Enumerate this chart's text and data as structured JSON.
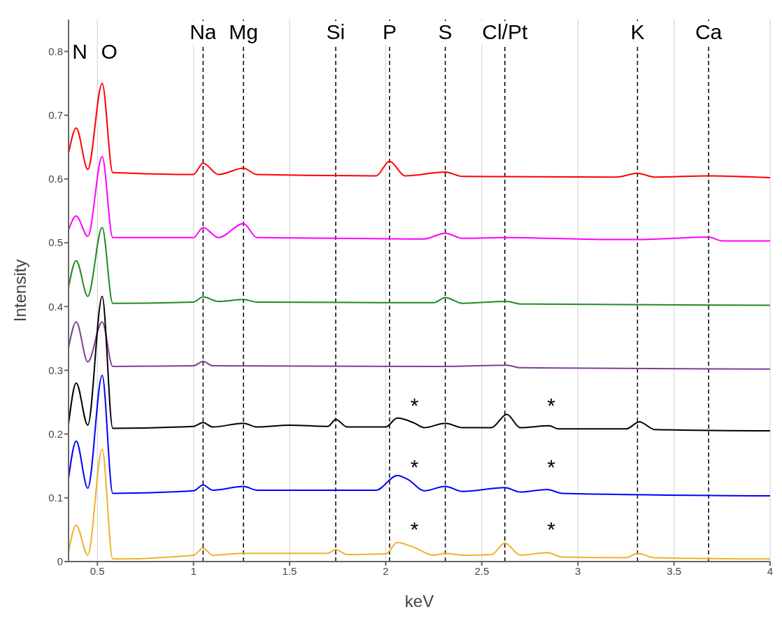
{
  "chart_data": {
    "type": "line",
    "xlabel": "keV",
    "ylabel": "Intensity",
    "xlim": [
      0.35,
      4
    ],
    "ylim": [
      0,
      0.85
    ],
    "xticks": [
      0.5,
      1,
      1.5,
      2,
      2.5,
      3,
      3.5,
      4
    ],
    "yticks": [
      0,
      0.1,
      0.2,
      0.3,
      0.4,
      0.5,
      0.6,
      0.7,
      0.8
    ],
    "grid": "x",
    "marker": "none",
    "line_style": "solid",
    "series": [
      {
        "color": "#ff0000",
        "x": [
          0.35,
          0.39,
          0.45,
          0.525,
          0.58,
          1.0,
          1.05,
          1.13,
          1.26,
          1.33,
          1.95,
          2.02,
          2.1,
          2.31,
          2.4,
          3.2,
          3.31,
          3.4,
          3.68,
          4.0
        ],
        "values": [
          0.64,
          0.68,
          0.615,
          0.75,
          0.61,
          0.607,
          0.625,
          0.607,
          0.617,
          0.607,
          0.605,
          0.628,
          0.605,
          0.611,
          0.604,
          0.603,
          0.609,
          0.603,
          0.605,
          0.602
        ]
      },
      {
        "color": "#ff00ff",
        "x": [
          0.35,
          0.39,
          0.45,
          0.525,
          0.58,
          1.0,
          1.05,
          1.13,
          1.26,
          1.33,
          2.2,
          2.31,
          2.4,
          2.63,
          3.2,
          3.31,
          3.68,
          3.75,
          4.0
        ],
        "values": [
          0.52,
          0.542,
          0.51,
          0.635,
          0.508,
          0.508,
          0.524,
          0.508,
          0.53,
          0.508,
          0.506,
          0.515,
          0.507,
          0.508,
          0.505,
          0.505,
          0.509,
          0.503,
          0.503
        ]
      },
      {
        "color": "#228b22",
        "x": [
          0.35,
          0.39,
          0.45,
          0.525,
          0.58,
          1.0,
          1.05,
          1.13,
          1.26,
          1.33,
          2.25,
          2.31,
          2.4,
          2.63,
          2.7,
          4.0
        ],
        "values": [
          0.43,
          0.472,
          0.416,
          0.524,
          0.405,
          0.407,
          0.415,
          0.408,
          0.411,
          0.407,
          0.406,
          0.414,
          0.405,
          0.408,
          0.404,
          0.402
        ]
      },
      {
        "color": "#7e3f98",
        "x": [
          0.35,
          0.39,
          0.45,
          0.525,
          0.58,
          1.0,
          1.05,
          1.1,
          2.3,
          2.63,
          2.7,
          4.0
        ],
        "values": [
          0.335,
          0.376,
          0.313,
          0.376,
          0.306,
          0.307,
          0.314,
          0.307,
          0.306,
          0.308,
          0.304,
          0.302
        ]
      },
      {
        "color": "#000000",
        "x": [
          0.35,
          0.39,
          0.45,
          0.525,
          0.58,
          1.0,
          1.05,
          1.1,
          1.26,
          1.33,
          1.5,
          1.7,
          1.74,
          1.8,
          2.0,
          2.06,
          2.15,
          2.2,
          2.31,
          2.4,
          2.55,
          2.63,
          2.7,
          2.85,
          2.9,
          3.25,
          3.32,
          3.4,
          4.0
        ],
        "values": [
          0.215,
          0.28,
          0.214,
          0.416,
          0.209,
          0.212,
          0.218,
          0.211,
          0.217,
          0.211,
          0.214,
          0.212,
          0.223,
          0.211,
          0.211,
          0.225,
          0.217,
          0.21,
          0.217,
          0.21,
          0.21,
          0.231,
          0.21,
          0.213,
          0.208,
          0.208,
          0.219,
          0.207,
          0.205
        ]
      },
      {
        "color": "#0000ff",
        "x": [
          0.35,
          0.39,
          0.45,
          0.525,
          0.58,
          1.0,
          1.05,
          1.1,
          1.26,
          1.33,
          1.95,
          2.06,
          2.12,
          2.2,
          2.31,
          2.4,
          2.62,
          2.7,
          2.84,
          2.92,
          4.0
        ],
        "values": [
          0.13,
          0.189,
          0.115,
          0.292,
          0.107,
          0.111,
          0.12,
          0.112,
          0.118,
          0.112,
          0.112,
          0.135,
          0.128,
          0.111,
          0.118,
          0.11,
          0.116,
          0.109,
          0.113,
          0.107,
          0.103
        ]
      },
      {
        "color": "#edb12a",
        "x": [
          0.35,
          0.39,
          0.45,
          0.525,
          0.58,
          1.0,
          1.05,
          1.1,
          1.26,
          1.7,
          1.74,
          1.8,
          2.0,
          2.06,
          2.15,
          2.25,
          2.31,
          2.4,
          2.55,
          2.62,
          2.7,
          2.84,
          2.92,
          3.25,
          3.31,
          3.4,
          4.0
        ],
        "values": [
          0.015,
          0.057,
          0.01,
          0.176,
          0.004,
          0.01,
          0.021,
          0.01,
          0.013,
          0.013,
          0.019,
          0.011,
          0.012,
          0.03,
          0.022,
          0.01,
          0.013,
          0.01,
          0.011,
          0.029,
          0.01,
          0.014,
          0.007,
          0.006,
          0.013,
          0.006,
          0.004
        ]
      }
    ],
    "ref_lines": [
      {
        "axis": "x",
        "value": 1.05,
        "label": "Na",
        "color": "#000000",
        "line_style": "dashed"
      },
      {
        "axis": "x",
        "value": 1.26,
        "label": "Mg",
        "color": "#000000",
        "line_style": "dashed"
      },
      {
        "axis": "x",
        "value": 1.74,
        "label": "Si",
        "color": "#000000",
        "line_style": "dashed"
      },
      {
        "axis": "x",
        "value": 2.02,
        "label": "P",
        "color": "#000000",
        "line_style": "dashed"
      },
      {
        "axis": "x",
        "value": 2.31,
        "label": "S",
        "color": "#000000",
        "line_style": "dashed"
      },
      {
        "axis": "x",
        "value": 2.62,
        "label": "Cl/Pt",
        "color": "#000000",
        "line_style": "dashed"
      },
      {
        "axis": "x",
        "value": 3.31,
        "label": "K",
        "color": "#000000",
        "line_style": "dashed"
      },
      {
        "axis": "x",
        "value": 3.68,
        "label": "Ca",
        "color": "#000000",
        "line_style": "dashed"
      }
    ],
    "annotations": [
      "N",
      "O",
      "*",
      "*",
      "*",
      "*",
      "*",
      "*"
    ]
  }
}
